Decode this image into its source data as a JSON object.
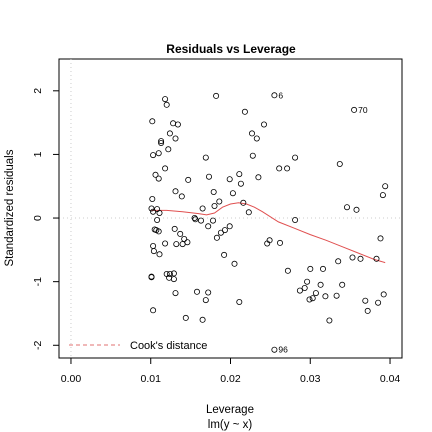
{
  "chart_data": {
    "type": "scatter",
    "title": "Residuals vs Leverage",
    "xlabel": "Leverage",
    "sublabel": "lm(y ~ x)",
    "ylabel": "Standardized residuals",
    "xlim": [
      -0.0015,
      0.0415
    ],
    "ylim": [
      -2.2,
      2.5
    ],
    "xticks": [
      "0.00",
      "0.01",
      "0.02",
      "0.03",
      "0.04"
    ],
    "xtick_values": [
      0.0,
      0.01,
      0.02,
      0.03,
      0.04
    ],
    "yticks": [
      "-2",
      "-1",
      "0",
      "1",
      "2"
    ],
    "ytick_values": [
      -2,
      -1,
      0,
      1,
      2
    ],
    "reference_lines": {
      "x": 0,
      "y": 0,
      "style": "dotted",
      "color": "#cccccc"
    },
    "legend": {
      "entries": [
        "Cook's distance"
      ],
      "position": "bottom-left",
      "color": "#e07070",
      "style": "dashed"
    },
    "point_labels": [
      {
        "label": "6",
        "x": 0.0255,
        "y": 1.93
      },
      {
        "label": "70",
        "x": 0.0355,
        "y": 1.7
      },
      {
        "label": "96",
        "x": 0.0255,
        "y": -2.07
      }
    ],
    "points": {
      "x": [
        0.0255,
        0.0355,
        0.0255,
        0.0118,
        0.012,
        0.0102,
        0.0113,
        0.0113,
        0.0103,
        0.011,
        0.0122,
        0.0106,
        0.011,
        0.0102,
        0.0118,
        0.0101,
        0.0108,
        0.0103,
        0.0111,
        0.0108,
        0.0105,
        0.0107,
        0.011,
        0.0103,
        0.0104,
        0.0118,
        0.0111,
        0.0101,
        0.0101,
        0.0103,
        0.012,
        0.0134,
        0.0128,
        0.0131,
        0.0124,
        0.0131,
        0.0147,
        0.0139,
        0.013,
        0.0137,
        0.0142,
        0.0156,
        0.0146,
        0.0132,
        0.014,
        0.0129,
        0.0124,
        0.0123,
        0.0129,
        0.0131,
        0.0165,
        0.0144,
        0.0158,
        0.0182,
        0.0169,
        0.0173,
        0.0179,
        0.0186,
        0.018,
        0.0193,
        0.0199,
        0.0211,
        0.0213,
        0.0203,
        0.0199,
        0.0188,
        0.0178,
        0.0172,
        0.0163,
        0.0165,
        0.0155,
        0.0183,
        0.0192,
        0.0205,
        0.0172,
        0.0169,
        0.0218,
        0.0227,
        0.0233,
        0.0242,
        0.0228,
        0.0235,
        0.0216,
        0.0223,
        0.0211,
        0.0249,
        0.0246,
        0.0261,
        0.0271,
        0.0281,
        0.0281,
        0.0262,
        0.0272,
        0.0287,
        0.0296,
        0.0307,
        0.0316,
        0.0303,
        0.0299,
        0.0293,
        0.03,
        0.0313,
        0.0319,
        0.0324,
        0.0333,
        0.0337,
        0.0346,
        0.0358,
        0.0363,
        0.0372,
        0.0385,
        0.0383,
        0.0394,
        0.0391,
        0.0388,
        0.0392,
        0.0369,
        0.0353,
        0.0335,
        0.034
      ],
      "y": [
        1.93,
        1.7,
        -2.07,
        1.87,
        1.78,
        1.52,
        1.21,
        1.18,
        0.99,
        1.02,
        1.08,
        0.68,
        0.62,
        0.3,
        0.78,
        0.15,
        0.14,
        0.1,
        0.08,
        -0.03,
        -0.18,
        -0.19,
        -0.21,
        -0.44,
        -0.52,
        -0.4,
        -0.57,
        -0.93,
        -0.92,
        -1.45,
        -0.88,
        1.47,
        1.49,
        1.25,
        1.33,
        0.42,
        0.6,
        0.34,
        -0.17,
        -0.25,
        -0.33,
        -0.02,
        -0.38,
        -0.41,
        -0.41,
        -0.87,
        -0.88,
        -0.94,
        -0.96,
        -1.18,
        -1.6,
        -1.57,
        -1.16,
        1.92,
        0.95,
        0.65,
        0.41,
        0.26,
        0.19,
        -0.19,
        -0.13,
        0.69,
        0.54,
        0.39,
        0.61,
        -0.23,
        -0.04,
        -0.13,
        -0.04,
        0.15,
        0.0,
        -0.31,
        -0.58,
        -0.72,
        -1.17,
        -1.29,
        1.67,
        1.33,
        1.25,
        1.47,
        0.98,
        0.64,
        0.24,
        0.09,
        -1.32,
        -0.35,
        -0.4,
        0.78,
        0.78,
        0.95,
        -0.03,
        -0.39,
        -0.83,
        -1.14,
        -1.0,
        -1.18,
        -0.8,
        -1.26,
        -1.28,
        -1.1,
        -0.8,
        -1.05,
        -1.23,
        -1.61,
        -1.22,
        0.85,
        0.17,
        0.13,
        -0.64,
        -1.46,
        -1.33,
        -0.64,
        0.5,
        0.36,
        -0.32,
        -1.2,
        -1.3,
        -0.62,
        -0.68,
        -1.05
      ]
    },
    "smooth_line": {
      "color": "#e05050",
      "x": [
        0.0101,
        0.012,
        0.014,
        0.016,
        0.017,
        0.018,
        0.019,
        0.02,
        0.021,
        0.022,
        0.023,
        0.024,
        0.026,
        0.028,
        0.03,
        0.032,
        0.034,
        0.036,
        0.038,
        0.0394
      ],
      "y": [
        0.12,
        0.12,
        0.1,
        0.07,
        0.05,
        0.08,
        0.17,
        0.22,
        0.24,
        0.22,
        0.17,
        0.1,
        -0.06,
        -0.16,
        -0.26,
        -0.35,
        -0.45,
        -0.55,
        -0.65,
        -0.7
      ]
    }
  }
}
